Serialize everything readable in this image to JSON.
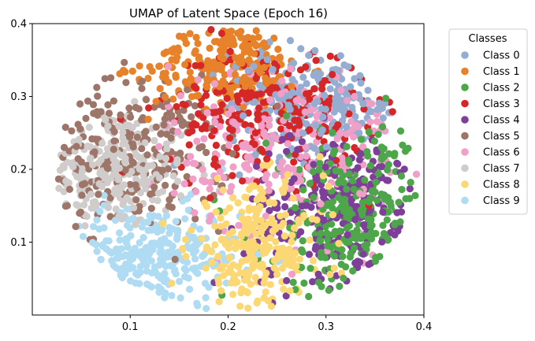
{
  "chart_data": {
    "type": "scatter",
    "title": "UMAP of Latent Space (Epoch 16)",
    "xlabel": "",
    "ylabel": "",
    "xlim": [
      0.0,
      0.4
    ],
    "ylim": [
      0.0,
      0.4
    ],
    "x_ticks": [
      0.1,
      0.2,
      0.3,
      0.4
    ],
    "x_tick_labels": [
      "0.1",
      "0.2",
      "0.3",
      "0.4"
    ],
    "y_ticks": [
      0.1,
      0.2,
      0.3,
      0.4
    ],
    "y_tick_labels": [
      "0.1",
      "0.2",
      "0.3",
      "0.4"
    ],
    "grid": false,
    "legend": {
      "title": "Classes",
      "placement": "outside-right-top",
      "entries": [
        "Class 0",
        "Class 1",
        "Class 2",
        "Class 3",
        "Class 4",
        "Class 5",
        "Class 6",
        "Class 7",
        "Class 8",
        "Class 9"
      ]
    },
    "series": [
      {
        "name": "Class 0",
        "color": "#95add0",
        "center": [
          0.29,
          0.29
        ],
        "spread": [
          0.045,
          0.04
        ]
      },
      {
        "name": "Class 1",
        "color": "#e8822a",
        "center": [
          0.2,
          0.34
        ],
        "spread": [
          0.04,
          0.03
        ]
      },
      {
        "name": "Class 2",
        "color": "#4ea64a",
        "center": [
          0.33,
          0.13
        ],
        "spread": [
          0.045,
          0.06
        ]
      },
      {
        "name": "Class 3",
        "color": "#d52727",
        "center": [
          0.24,
          0.28
        ],
        "spread": [
          0.05,
          0.045
        ]
      },
      {
        "name": "Class 4",
        "color": "#7e3f98",
        "center": [
          0.32,
          0.14
        ],
        "spread": [
          0.05,
          0.055
        ]
      },
      {
        "name": "Class 5",
        "color": "#9e7669",
        "center": [
          0.1,
          0.22
        ],
        "spread": [
          0.05,
          0.05
        ]
      },
      {
        "name": "Class 6",
        "color": "#f0a0c8",
        "center": [
          0.26,
          0.23
        ],
        "spread": [
          0.06,
          0.06
        ]
      },
      {
        "name": "Class 7",
        "color": "#d0cccb",
        "center": [
          0.08,
          0.2
        ],
        "spread": [
          0.04,
          0.04
        ]
      },
      {
        "name": "Class 8",
        "color": "#fbd874",
        "center": [
          0.23,
          0.09
        ],
        "spread": [
          0.035,
          0.045
        ]
      },
      {
        "name": "Class 9",
        "color": "#afdcf3",
        "center": [
          0.12,
          0.08
        ],
        "spread": [
          0.045,
          0.035
        ]
      }
    ]
  }
}
